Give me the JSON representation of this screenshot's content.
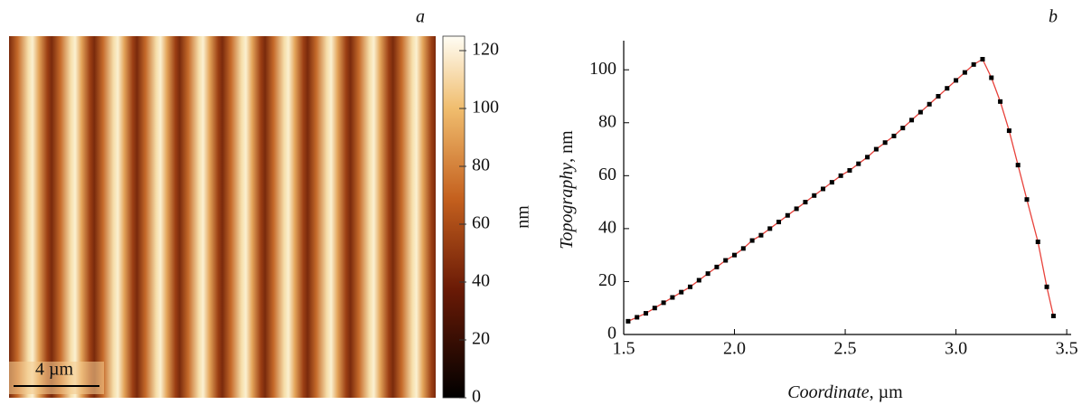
{
  "chart_data": [
    {
      "type": "image",
      "panel_label": "a",
      "scale_bar": "4 µm",
      "colorbar": {
        "label": "nm",
        "lim": [
          0,
          125
        ],
        "ticks": [
          0,
          20,
          40,
          60,
          80,
          100,
          120
        ]
      }
    },
    {
      "type": "line",
      "panel_label": "b",
      "x_label": "Coordinate",
      "x_unit": ", µm",
      "y_label": "Topography",
      "y_unit": ", nm",
      "x": [
        1.52,
        1.56,
        1.6,
        1.64,
        1.68,
        1.72,
        1.76,
        1.8,
        1.84,
        1.88,
        1.92,
        1.96,
        2.0,
        2.04,
        2.08,
        2.12,
        2.16,
        2.2,
        2.24,
        2.28,
        2.32,
        2.36,
        2.4,
        2.44,
        2.48,
        2.52,
        2.56,
        2.6,
        2.64,
        2.68,
        2.72,
        2.76,
        2.8,
        2.84,
        2.88,
        2.92,
        2.96,
        3.0,
        3.04,
        3.08,
        3.12,
        3.16,
        3.2,
        3.24,
        3.28,
        3.32,
        3.37,
        3.41,
        3.44
      ],
      "values": [
        5,
        6.5,
        8,
        10,
        12,
        14,
        16,
        18,
        20.5,
        23,
        25.5,
        28,
        30,
        32.5,
        35.5,
        37.5,
        40,
        42.5,
        45,
        47.5,
        50,
        52.5,
        55,
        57.5,
        60,
        62,
        64.5,
        67,
        70,
        72.5,
        75,
        78,
        81,
        84,
        87,
        90,
        93,
        96,
        99,
        102,
        104,
        97,
        88,
        77,
        64,
        51,
        35,
        18,
        7
      ],
      "color": "#e8413a",
      "marker_color": "#000000",
      "xlim": [
        1.5,
        3.52
      ],
      "ylim": [
        0,
        111
      ],
      "xticks": [
        {
          "value": 1.5,
          "label": "1.5"
        },
        {
          "value": 2,
          "label": "2.0"
        },
        {
          "value": 2.5,
          "label": "2.5"
        },
        {
          "value": 3,
          "label": "3.0"
        },
        3.5
      ],
      "yticks": [
        0,
        20,
        40,
        60,
        80,
        100
      ]
    }
  ]
}
